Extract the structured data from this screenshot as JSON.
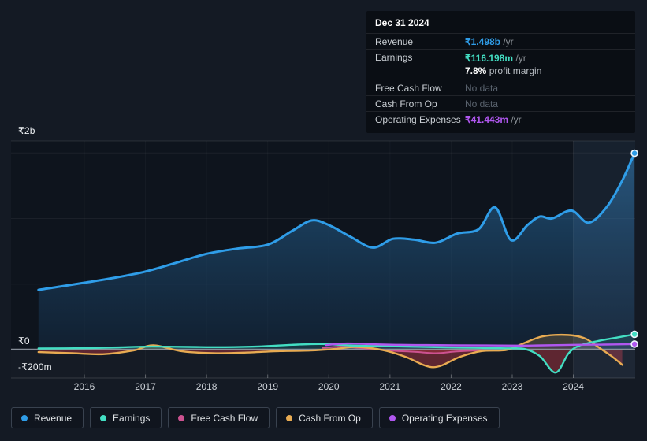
{
  "colors": {
    "page_bg": "#141a24",
    "plot_bg": "#0e141d",
    "below_zero_bg": "#151b25",
    "grid": "#ffffff",
    "zero_line": "#99a1ab",
    "band": "#7fa7d9",
    "negative_fill": "#a8323e",
    "revenue": "#2f9de8",
    "earnings": "#43dec3",
    "free_cash_flow": "#cc5290",
    "cash_from_op": "#e8ab52",
    "operating_expenses": "#b057ef"
  },
  "tooltip": {
    "date": "Dec 31 2024",
    "rows": [
      {
        "slug": "revenue",
        "label": "Revenue",
        "value": "₹1.498b",
        "suffix": " /yr",
        "color_key": "revenue"
      },
      {
        "slug": "earnings",
        "label": "Earnings",
        "value": "₹116.198m",
        "suffix": " /yr",
        "color_key": "earnings",
        "sub_bold": "7.8%",
        "sub_text": " profit margin"
      },
      {
        "slug": "free-cash-flow",
        "label": "Free Cash Flow",
        "value": "No data",
        "nodata": true
      },
      {
        "slug": "cash-from-op",
        "label": "Cash From Op",
        "value": "No data",
        "nodata": true
      },
      {
        "slug": "operating-expenses",
        "label": "Operating Expenses",
        "value": "₹41.443m",
        "suffix": " /yr",
        "color_key": "operating_expenses"
      }
    ]
  },
  "y_axis": {
    "labels": [
      {
        "text": "₹2b",
        "y": 166
      },
      {
        "text": "₹0",
        "y": 433
      },
      {
        "text": "-₹200m",
        "y": 466
      }
    ]
  },
  "x_axis": {
    "years": [
      "2016",
      "2017",
      "2018",
      "2019",
      "2020",
      "2021",
      "2022",
      "2023",
      "2024"
    ]
  },
  "legend": [
    {
      "slug": "revenue",
      "label": "Revenue",
      "color_key": "revenue"
    },
    {
      "slug": "earnings",
      "label": "Earnings",
      "color_key": "earnings"
    },
    {
      "slug": "free-cash-flow",
      "label": "Free Cash Flow",
      "color_key": "free_cash_flow"
    },
    {
      "slug": "cash-from-op",
      "label": "Cash From Op",
      "color_key": "cash_from_op"
    },
    {
      "slug": "operating-expenses",
      "label": "Operating Expenses",
      "color_key": "operating_expenses"
    }
  ],
  "chart_data": {
    "type": "line",
    "title": "Financial history: revenue, earnings and cash flow (₹, TTM)",
    "x_unit": "year",
    "y_unit": "INR millions",
    "ylim": [
      -200,
      2000
    ],
    "y_tick_labels": [
      "₹2b",
      "₹0",
      "-₹200m"
    ],
    "x_tick_labels": [
      "2016",
      "2017",
      "2018",
      "2019",
      "2020",
      "2021",
      "2022",
      "2023",
      "2024"
    ],
    "grid": true,
    "legend_position": "bottom",
    "highlight_band": {
      "x_start": 2024.0,
      "x_end": 2025.02,
      "meaning": "past 12 months"
    },
    "latest": {
      "date": "Dec 31 2024",
      "revenue_m": 1498,
      "earnings_m": 116.198,
      "profit_margin": "7.8%",
      "operating_expenses_m": 41.443
    },
    "series": [
      {
        "name": "Revenue",
        "color_key": "revenue",
        "end_dot": true,
        "width": 3,
        "fill": "gradient",
        "points": [
          [
            2015.25,
            455
          ],
          [
            2015.6,
            480
          ],
          [
            2016.0,
            510
          ],
          [
            2016.5,
            548
          ],
          [
            2017.0,
            595
          ],
          [
            2017.5,
            662
          ],
          [
            2018.0,
            730
          ],
          [
            2018.5,
            770
          ],
          [
            2019.0,
            800
          ],
          [
            2019.4,
            905
          ],
          [
            2019.72,
            985
          ],
          [
            2020.0,
            950
          ],
          [
            2020.35,
            862
          ],
          [
            2020.72,
            778
          ],
          [
            2021.05,
            845
          ],
          [
            2021.4,
            838
          ],
          [
            2021.75,
            815
          ],
          [
            2022.1,
            885
          ],
          [
            2022.45,
            918
          ],
          [
            2022.72,
            1085
          ],
          [
            2022.98,
            835
          ],
          [
            2023.25,
            950
          ],
          [
            2023.45,
            1015
          ],
          [
            2023.65,
            1000
          ],
          [
            2023.97,
            1060
          ],
          [
            2024.25,
            968
          ],
          [
            2024.55,
            1090
          ],
          [
            2024.8,
            1290
          ],
          [
            2025.0,
            1498
          ]
        ]
      },
      {
        "name": "Free Cash Flow",
        "color_key": "free_cash_flow",
        "end_dot": false,
        "width": 2,
        "fill_alpha": 0.1,
        "points": [
          [
            2019.9,
            12
          ],
          [
            2020.2,
            22
          ],
          [
            2020.6,
            8
          ],
          [
            2021.0,
            -8
          ],
          [
            2021.4,
            -18
          ],
          [
            2021.75,
            -28
          ],
          [
            2022.1,
            -15
          ],
          [
            2022.5,
            -6
          ]
        ]
      },
      {
        "name": "Cash From Op",
        "color_key": "cash_from_op",
        "end_dot": false,
        "width": 2.4,
        "fill_alpha": 0.2,
        "points": [
          [
            2015.25,
            -20
          ],
          [
            2015.8,
            -28
          ],
          [
            2016.3,
            -36
          ],
          [
            2016.8,
            -8
          ],
          [
            2017.13,
            32
          ],
          [
            2017.6,
            -14
          ],
          [
            2018.1,
            -28
          ],
          [
            2018.6,
            -24
          ],
          [
            2019.2,
            -12
          ],
          [
            2019.7,
            -8
          ],
          [
            2020.1,
            4
          ],
          [
            2020.45,
            20
          ],
          [
            2020.9,
            -6
          ],
          [
            2021.25,
            -55
          ],
          [
            2021.71,
            -135
          ],
          [
            2022.15,
            -55
          ],
          [
            2022.5,
            -12
          ],
          [
            2022.9,
            -4
          ],
          [
            2023.15,
            40
          ],
          [
            2023.45,
            95
          ],
          [
            2023.7,
            111
          ],
          [
            2024.0,
            107
          ],
          [
            2024.22,
            78
          ],
          [
            2024.45,
            5
          ],
          [
            2024.65,
            -60
          ],
          [
            2024.8,
            -117
          ]
        ]
      },
      {
        "name": "Earnings",
        "color_key": "earnings",
        "end_dot": true,
        "width": 2.4,
        "fill_alpha": 0.12,
        "points": [
          [
            2015.25,
            8
          ],
          [
            2016.0,
            10
          ],
          [
            2016.6,
            17
          ],
          [
            2017.1,
            22
          ],
          [
            2017.7,
            20
          ],
          [
            2018.3,
            18
          ],
          [
            2018.9,
            24
          ],
          [
            2019.4,
            36
          ],
          [
            2019.9,
            42
          ],
          [
            2020.4,
            30
          ],
          [
            2020.9,
            26
          ],
          [
            2021.4,
            21
          ],
          [
            2021.9,
            17
          ],
          [
            2022.4,
            13
          ],
          [
            2022.9,
            9
          ],
          [
            2023.2,
            4
          ],
          [
            2023.45,
            -50
          ],
          [
            2023.71,
            -177
          ],
          [
            2023.92,
            -30
          ],
          [
            2024.1,
            30
          ],
          [
            2024.4,
            65
          ],
          [
            2024.7,
            90
          ],
          [
            2025.0,
            116.198
          ]
        ]
      },
      {
        "name": "Operating Expenses",
        "color_key": "operating_expenses",
        "end_dot": true,
        "width": 2.4,
        "fill_alpha": 0.1,
        "points": [
          [
            2019.95,
            34
          ],
          [
            2020.3,
            46
          ],
          [
            2020.7,
            40
          ],
          [
            2021.1,
            36
          ],
          [
            2021.6,
            34
          ],
          [
            2022.1,
            32
          ],
          [
            2022.6,
            31
          ],
          [
            2023.1,
            30
          ],
          [
            2023.5,
            32
          ],
          [
            2024.0,
            36
          ],
          [
            2024.5,
            38
          ],
          [
            2025.0,
            41.443
          ]
        ]
      }
    ]
  }
}
